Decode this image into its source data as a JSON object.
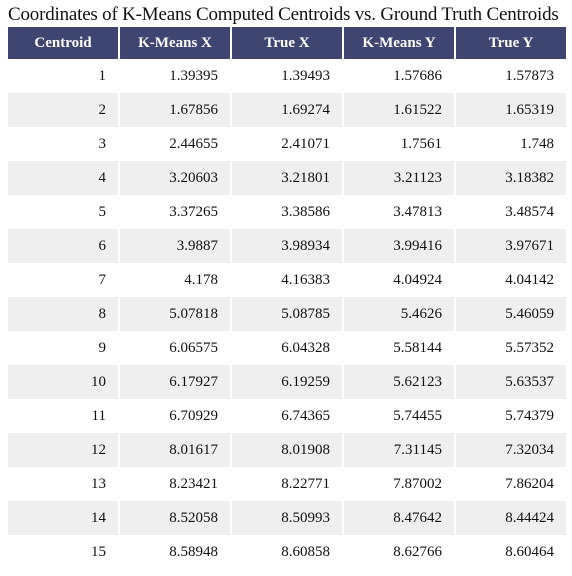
{
  "title": "Coordinates of K-Means Computed Centroids vs. Ground Truth Centroids",
  "table": {
    "columns": [
      "Centroid",
      "K-Means X",
      "True X",
      "K-Means Y",
      "True Y"
    ],
    "rows": [
      [
        1,
        1.39395,
        1.39493,
        1.57686,
        1.57873
      ],
      [
        2,
        1.67856,
        1.69274,
        1.61522,
        1.65319
      ],
      [
        3,
        2.44655,
        2.41071,
        1.7561,
        1.748
      ],
      [
        4,
        3.20603,
        3.21801,
        3.21123,
        3.18382
      ],
      [
        5,
        3.37265,
        3.38586,
        3.47813,
        3.48574
      ],
      [
        6,
        3.9887,
        3.98934,
        3.99416,
        3.97671
      ],
      [
        7,
        4.178,
        4.16383,
        4.04924,
        4.04142
      ],
      [
        8,
        5.07818,
        5.08785,
        5.4626,
        5.46059
      ],
      [
        9,
        6.06575,
        6.04328,
        5.58144,
        5.57352
      ],
      [
        10,
        6.17927,
        6.19259,
        5.62123,
        5.63537
      ],
      [
        11,
        6.70929,
        6.74365,
        5.74455,
        5.74379
      ],
      [
        12,
        8.01617,
        8.01908,
        7.31145,
        7.32034
      ],
      [
        13,
        8.23421,
        8.22771,
        7.87002,
        7.86204
      ],
      [
        14,
        8.52058,
        8.50993,
        8.47642,
        8.44424
      ],
      [
        15,
        8.58948,
        8.60858,
        8.62766,
        8.60464
      ]
    ]
  }
}
